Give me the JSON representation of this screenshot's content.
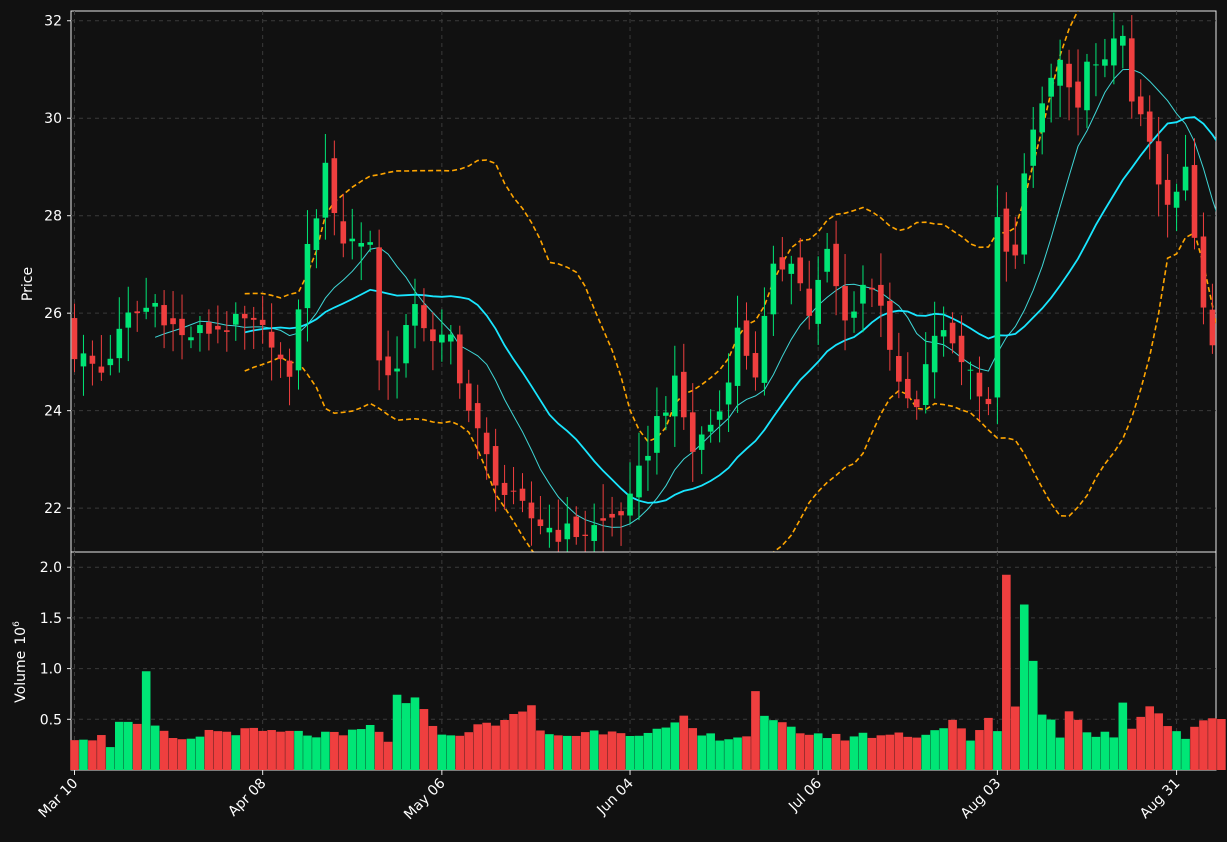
{
  "colors": {
    "background": "#111111",
    "grid": "#3a3a3a",
    "axis": "#e8e8e8",
    "text": "#ffffff",
    "up": "#00e676",
    "down": "#ef3f3f",
    "ma_short": "#3fd6d6",
    "ma_long": "#19e6ff",
    "bollinger": "#ffa500"
  },
  "chart_data": [
    {
      "type": "candlestick",
      "ylabel": "Price",
      "ylim": [
        21.1,
        32.2
      ],
      "yticks": [
        22,
        24,
        26,
        28,
        30,
        32
      ],
      "grid": true,
      "date_ticks": [
        {
          "label": "Mar 10",
          "index": 0
        },
        {
          "label": "Apr 08",
          "index": 21
        },
        {
          "label": "May 06",
          "index": 41
        },
        {
          "label": "Jun 04",
          "index": 62
        },
        {
          "label": "Jul 06",
          "index": 83
        },
        {
          "label": "Aug 03",
          "index": 103
        },
        {
          "label": "Aug 31",
          "index": 123
        }
      ],
      "close_anchors": [
        [
          0,
          25.2
        ],
        [
          3,
          24.8
        ],
        [
          6,
          25.9
        ],
        [
          9,
          26.2
        ],
        [
          12,
          25.5
        ],
        [
          16,
          25.7
        ],
        [
          19,
          25.8
        ],
        [
          22,
          25.5
        ],
        [
          24,
          24.5
        ],
        [
          25,
          26.2
        ],
        [
          26,
          27.3
        ],
        [
          28,
          28.9
        ],
        [
          30,
          27.5
        ],
        [
          33,
          27.5
        ],
        [
          34,
          25.0
        ],
        [
          36,
          24.8
        ],
        [
          38,
          26.3
        ],
        [
          40,
          25.3
        ],
        [
          42,
          25.5
        ],
        [
          44,
          24.0
        ],
        [
          46,
          23.0
        ],
        [
          48,
          22.3
        ],
        [
          51,
          21.8
        ],
        [
          54,
          21.5
        ],
        [
          57,
          21.5
        ],
        [
          60,
          21.8
        ],
        [
          62,
          22.1
        ],
        [
          65,
          23.8
        ],
        [
          67,
          24.5
        ],
        [
          69,
          23.2
        ],
        [
          72,
          24.0
        ],
        [
          74,
          25.6
        ],
        [
          76,
          24.8
        ],
        [
          78,
          26.8
        ],
        [
          80,
          27.2
        ],
        [
          82,
          26.0
        ],
        [
          84,
          27.2
        ],
        [
          86,
          25.8
        ],
        [
          88,
          26.6
        ],
        [
          90,
          26.3
        ],
        [
          92,
          24.4
        ],
        [
          94,
          24.0
        ],
        [
          96,
          25.6
        ],
        [
          98,
          25.4
        ],
        [
          100,
          24.8
        ],
        [
          102,
          24.2
        ],
        [
          103,
          27.8
        ],
        [
          105,
          27.0
        ],
        [
          106,
          28.8
        ],
        [
          108,
          30.5
        ],
        [
          110,
          31.0
        ],
        [
          112,
          30.2
        ],
        [
          113,
          31.1
        ],
        [
          115,
          31.0
        ],
        [
          117,
          31.9
        ],
        [
          118,
          30.2
        ],
        [
          120,
          29.6
        ],
        [
          122,
          28.0
        ],
        [
          124,
          28.9
        ],
        [
          125,
          27.5
        ],
        [
          126,
          26.0
        ],
        [
          127,
          25.3
        ],
        [
          128,
          24.8
        ]
      ],
      "volume_anchors": [
        [
          0,
          0.33
        ],
        [
          3,
          0.32
        ],
        [
          4,
          0.25
        ],
        [
          5,
          0.5
        ],
        [
          7,
          0.42
        ],
        [
          8,
          0.96
        ],
        [
          9,
          0.4
        ],
        [
          12,
          0.27
        ],
        [
          15,
          0.38
        ],
        [
          20,
          0.38
        ],
        [
          25,
          0.36
        ],
        [
          30,
          0.33
        ],
        [
          33,
          0.43
        ],
        [
          35,
          0.3
        ],
        [
          36,
          0.72
        ],
        [
          37,
          0.63
        ],
        [
          38,
          0.68
        ],
        [
          39,
          0.62
        ],
        [
          41,
          0.32
        ],
        [
          45,
          0.42
        ],
        [
          50,
          0.55
        ],
        [
          51,
          0.65
        ],
        [
          52,
          0.37
        ],
        [
          55,
          0.34
        ],
        [
          60,
          0.4
        ],
        [
          64,
          0.35
        ],
        [
          67,
          0.43
        ],
        [
          68,
          0.5
        ],
        [
          70,
          0.33
        ],
        [
          75,
          0.33
        ],
        [
          76,
          0.8
        ],
        [
          77,
          0.5
        ],
        [
          80,
          0.4
        ],
        [
          85,
          0.32
        ],
        [
          90,
          0.35
        ],
        [
          95,
          0.35
        ],
        [
          98,
          0.48
        ],
        [
          100,
          0.28
        ],
        [
          102,
          0.51
        ],
        [
          103,
          0.35
        ],
        [
          104,
          1.95
        ],
        [
          105,
          0.63
        ],
        [
          106,
          1.65
        ],
        [
          107,
          1.06
        ],
        [
          108,
          0.57
        ],
        [
          109,
          0.53
        ],
        [
          110,
          0.3
        ],
        [
          111,
          0.61
        ],
        [
          113,
          0.36
        ],
        [
          116,
          0.35
        ],
        [
          117,
          0.68
        ],
        [
          118,
          0.42
        ],
        [
          120,
          0.66
        ],
        [
          122,
          0.45
        ],
        [
          124,
          0.32
        ],
        [
          126,
          0.47
        ],
        [
          127,
          0.52
        ]
      ]
    },
    {
      "type": "bar",
      "ylabel": "Volume",
      "ylabel_exp": "10",
      "ylabel_sup": "6",
      "ylim": [
        0,
        2.15
      ],
      "yticks": [
        0.5,
        1.0,
        1.5,
        2.0
      ],
      "ytick_labels": [
        "0.5",
        "1.0",
        "1.5",
        "2.0"
      ],
      "grid": true
    }
  ]
}
